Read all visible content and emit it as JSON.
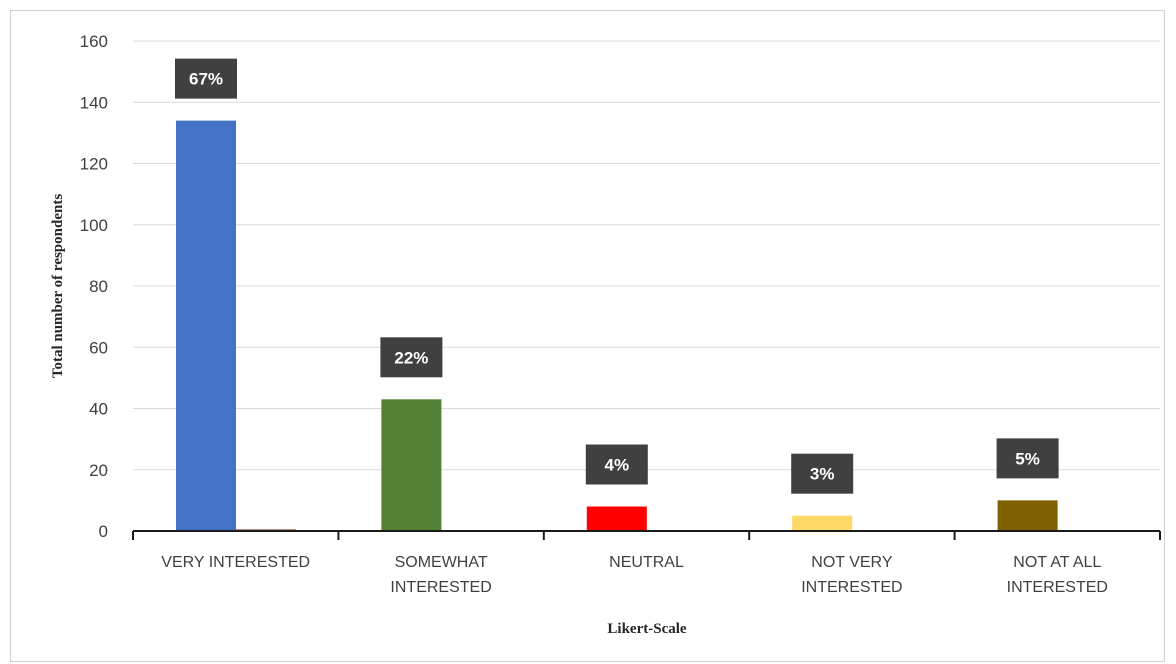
{
  "chart_data": {
    "type": "bar",
    "categories": [
      [
        "VERY INTERESTED"
      ],
      [
        "SOMEWHAT",
        "INTERESTED"
      ],
      [
        "NEUTRAL"
      ],
      [
        "NOT  VERY",
        "INTERESTED"
      ],
      [
        "NOT AT ALL",
        "INTERESTED"
      ]
    ],
    "values": [
      134,
      43,
      8,
      5,
      10
    ],
    "secondary_values": [
      0.5,
      0,
      0,
      0,
      0
    ],
    "data_labels": [
      "67%",
      "22%",
      "4%",
      "3%",
      "5%"
    ],
    "bar_colors": [
      "#4472C4",
      "#548235",
      "#FF0000",
      "#FFD966",
      "#7F6000"
    ],
    "secondary_color": "#843C0C",
    "label_bg_color": "#404040",
    "xlabel": "Likert-Scale",
    "ylabel": "Total number of respondents",
    "ylim": [
      0,
      160
    ],
    "yticks": [
      0,
      20,
      40,
      60,
      80,
      100,
      120,
      140,
      160
    ],
    "grid": true,
    "legend": "none"
  }
}
